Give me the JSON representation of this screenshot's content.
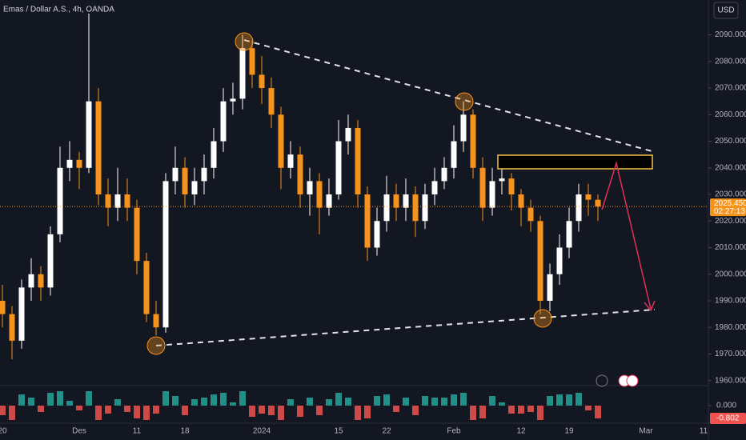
{
  "chart_data": {
    "type": "candlestick",
    "title": "Emas / Dollar A.S., 4h, OANDA",
    "currency": "USD",
    "up_color": "#ffffff",
    "down_color": "#f7931a",
    "categories": [
      "20",
      null,
      null,
      null,
      null,
      null,
      null,
      null,
      "Des",
      null,
      null,
      null,
      null,
      null,
      "11",
      null,
      null,
      null,
      null,
      "18",
      null,
      null,
      null,
      null,
      null,
      null,
      null,
      "2024",
      null,
      null,
      null,
      null,
      null,
      null,
      null,
      "15",
      null,
      null,
      null,
      null,
      "22",
      null,
      null,
      null,
      null,
      null,
      null,
      "Feb",
      null,
      null,
      null,
      null,
      null,
      null,
      "12",
      null,
      null,
      null,
      null,
      "19",
      null,
      null,
      null,
      null,
      null,
      null,
      null,
      "Mar",
      null,
      null,
      null,
      null,
      null,
      "11"
    ],
    "open": [
      1990,
      1985,
      1975,
      1995,
      2000,
      1995,
      2015,
      2040,
      2043,
      2040,
      2065,
      2030,
      2025,
      2030,
      2025,
      2005,
      1985,
      1980,
      2035,
      2040,
      2030,
      2035,
      2040,
      2050,
      2065,
      2066,
      2085,
      2075,
      2070,
      2060,
      2040,
      2045,
      2030,
      2035,
      2025,
      2030,
      2050,
      2055,
      2030,
      2010,
      2020,
      2030,
      2025,
      2030,
      2020,
      2030,
      2035,
      2040,
      2050,
      2060,
      2040,
      2025,
      2035,
      2036,
      2030,
      2025,
      2020,
      1990,
      2000,
      2010,
      2020,
      2030,
      2028,
      null,
      null,
      null,
      null,
      null,
      null,
      null,
      null,
      null,
      null,
      null
    ],
    "high": [
      1996,
      1988,
      1998,
      2006,
      2003,
      2018,
      2048,
      2050,
      2046,
      2098,
      2070,
      2036,
      2040,
      2036,
      2028,
      2008,
      1990,
      2038,
      2048,
      2044,
      2040,
      2045,
      2055,
      2070,
      2072,
      2090,
      2088,
      2082,
      2074,
      2063,
      2050,
      2048,
      2040,
      2038,
      2036,
      2058,
      2060,
      2058,
      2033,
      2025,
      2037,
      2034,
      2036,
      2033,
      2034,
      2040,
      2044,
      2056,
      2065,
      2062,
      2044,
      2040,
      2040,
      2038,
      2032,
      2028,
      2022,
      2004,
      2015,
      2025,
      2034,
      2034,
      2030,
      null,
      null,
      null,
      null,
      null,
      null,
      null,
      null,
      null,
      null,
      null
    ],
    "low": [
      1980,
      1968,
      1972,
      1990,
      1990,
      1992,
      2012,
      2035,
      2032,
      2038,
      2026,
      2018,
      2020,
      2020,
      2000,
      1982,
      1977,
      1978,
      2030,
      2025,
      2026,
      2030,
      2036,
      2046,
      2060,
      2062,
      2070,
      2064,
      2055,
      2032,
      2036,
      2025,
      2022,
      2015,
      2022,
      2028,
      2045,
      2025,
      2005,
      2007,
      2016,
      2020,
      2020,
      2014,
      2017,
      2026,
      2032,
      2036,
      2046,
      2036,
      2020,
      2022,
      2030,
      2024,
      2018,
      2016,
      1985,
      1986,
      1996,
      2006,
      2016,
      2022,
      2020,
      null,
      null,
      null,
      null,
      null,
      null,
      null,
      null,
      null,
      null,
      null
    ],
    "close": [
      1985,
      1975,
      1995,
      2000,
      1995,
      2015,
      2040,
      2043,
      2040,
      2065,
      2030,
      2025,
      2030,
      2025,
      2005,
      1985,
      1980,
      2035,
      2040,
      2030,
      2035,
      2040,
      2050,
      2065,
      2066,
      2085,
      2075,
      2070,
      2060,
      2040,
      2045,
      2030,
      2035,
      2025,
      2030,
      2050,
      2055,
      2030,
      2010,
      2020,
      2030,
      2025,
      2030,
      2020,
      2030,
      2035,
      2040,
      2050,
      2060,
      2040,
      2025,
      2035,
      2036,
      2030,
      2025,
      2020,
      1990,
      2000,
      2010,
      2020,
      2030,
      2028,
      2025.45,
      null,
      null,
      null,
      null,
      null,
      null,
      null,
      null,
      null,
      null,
      null
    ],
    "ylim": [
      1956,
      2098
    ],
    "yticks": [
      {
        "value": 1960,
        "label": "1960.000"
      },
      {
        "value": 1970,
        "label": "1970.000"
      },
      {
        "value": 1980,
        "label": "1980.000"
      },
      {
        "value": 1990,
        "label": "1990.000"
      },
      {
        "value": 2000,
        "label": "2000.000"
      },
      {
        "value": 2010,
        "label": "2010.000"
      },
      {
        "value": 2020,
        "label": "2020.000"
      },
      {
        "value": 2030,
        "label": "2030.000"
      },
      {
        "value": 2040,
        "label": "2040.000"
      },
      {
        "value": 2050,
        "label": "2050.000"
      },
      {
        "value": 2060,
        "label": "2060.000"
      },
      {
        "value": 2070,
        "label": "2070.000"
      },
      {
        "value": 2080,
        "label": "2080.000"
      },
      {
        "value": 2090,
        "label": "2090.000"
      }
    ],
    "last_price": {
      "value": 2025.45,
      "label": "2025.450"
    },
    "countdown": "02:27:13",
    "indicator": {
      "values": [
        -0.6,
        -0.9,
        0.7,
        0.5,
        -0.4,
        0.8,
        0.9,
        0.3,
        -0.3,
        0.9,
        -0.9,
        -0.5,
        0.4,
        -0.4,
        -0.8,
        -0.9,
        -0.5,
        0.9,
        0.6,
        -0.6,
        0.4,
        0.5,
        0.7,
        0.8,
        0.2,
        0.9,
        -0.7,
        -0.5,
        -0.6,
        -0.9,
        0.4,
        -0.7,
        0.5,
        -0.6,
        0.4,
        0.8,
        0.5,
        -0.9,
        -0.8,
        0.6,
        0.7,
        -0.4,
        0.5,
        -0.6,
        0.6,
        0.5,
        0.5,
        0.7,
        0.8,
        -0.9,
        -0.8,
        0.6,
        0.2,
        -0.5,
        -0.5,
        -0.4,
        -0.9,
        0.6,
        0.7,
        0.7,
        0.8,
        -0.3,
        -0.802,
        null,
        null,
        null,
        null,
        null,
        null,
        null,
        null,
        null,
        null,
        null
      ],
      "ylim": [
        -1,
        1
      ],
      "yticks": [
        {
          "value": 0,
          "label": "0.000"
        }
      ],
      "last": {
        "value": -0.802,
        "label": "-0.802"
      },
      "up_color": "#26a69a",
      "down_color": "#ef5350"
    }
  }
}
